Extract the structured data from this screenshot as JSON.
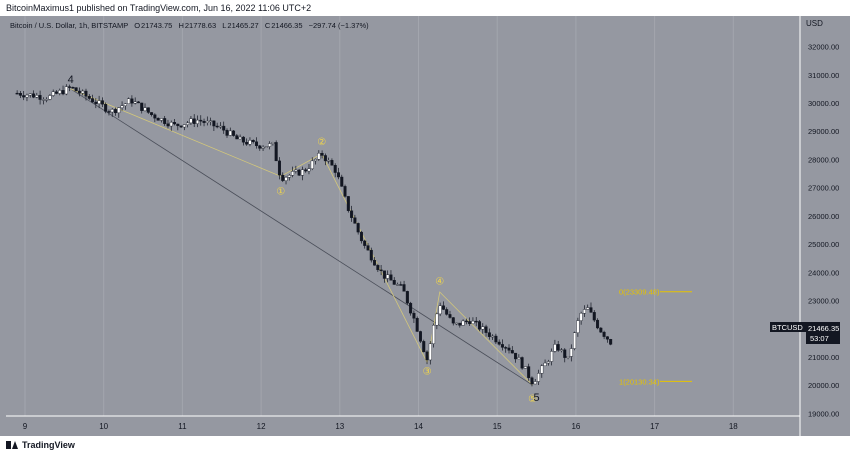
{
  "header": {
    "publish_line": "BitcoinMaximus1 published on TradingView.com, Jun 16, 2022 11:06 UTC+2"
  },
  "symbol_info": {
    "name": "Bitcoin / U.S. Dollar, 1h, BITSTAMP",
    "o_label": "O",
    "o_value": "21743.75",
    "h_label": "H",
    "h_value": "21778.63",
    "l_label": "L",
    "l_value": "21465.27",
    "c_label": "C",
    "c_value": "21466.35",
    "change": "−297.74 (−1.37%)"
  },
  "price_badge": {
    "symbol": "BTCUSD",
    "price": "21466.35",
    "countdown": "53:07"
  },
  "footer": {
    "brand": "TradingView"
  },
  "colors": {
    "background": "#9598a1",
    "wave_label": "#f2d648",
    "fib_line": "#e6c300",
    "candle_up": "#ffffff",
    "candle_down": "#131722",
    "trend_line": "#4a4e59",
    "wave_path": "#d4c87a"
  },
  "chart_data": {
    "type": "candlestick",
    "currency_label": "USD",
    "y_ticks": [
      19000,
      20000,
      21000,
      22000,
      23000,
      24000,
      25000,
      26000,
      27000,
      28000,
      29000,
      30000,
      31000,
      32000
    ],
    "x_ticks": [
      {
        "label": "9",
        "day": 9
      },
      {
        "label": "10",
        "day": 10
      },
      {
        "label": "11",
        "day": 11
      },
      {
        "label": "12",
        "day": 12
      },
      {
        "label": "13",
        "day": 13
      },
      {
        "label": "14",
        "day": 14
      },
      {
        "label": "15",
        "day": 15
      },
      {
        "label": "16",
        "day": 16
      },
      {
        "label": "17",
        "day": 17
      },
      {
        "label": "18",
        "day": 18
      }
    ],
    "wave_labels": [
      {
        "label": "4",
        "day": 9.58,
        "price": 30850,
        "plain": true
      },
      {
        "label": "①",
        "day": 12.25,
        "price": 26900
      },
      {
        "label": "②",
        "day": 12.77,
        "price": 28650
      },
      {
        "label": "③",
        "day": 14.11,
        "price": 20510
      },
      {
        "label": "④",
        "day": 14.27,
        "price": 23700
      },
      {
        "label": "⑤",
        "day": 15.45,
        "price": 19550
      },
      {
        "label": "5",
        "day": 15.5,
        "price": 19580,
        "plain": true
      }
    ],
    "fib_levels": [
      {
        "label": "0(23309.48)",
        "value": 23309.48
      },
      {
        "label": "1(20130.34)",
        "value": 20130.34
      }
    ],
    "trend_line": [
      {
        "day": 9.58,
        "price": 30500
      },
      {
        "day": 15.45,
        "price": 20000
      }
    ],
    "wave_path": [
      {
        "day": 9.58,
        "price": 30500
      },
      {
        "day": 12.25,
        "price": 27400
      },
      {
        "day": 12.77,
        "price": 28200
      },
      {
        "day": 14.11,
        "price": 20800
      },
      {
        "day": 14.27,
        "price": 23300
      },
      {
        "day": 15.45,
        "price": 20000
      }
    ],
    "anchor_points": [
      {
        "day": 8.9,
        "price": 30350
      },
      {
        "day": 9.3,
        "price": 30200
      },
      {
        "day": 9.58,
        "price": 30550
      },
      {
        "day": 9.8,
        "price": 30200
      },
      {
        "day": 10.1,
        "price": 29700
      },
      {
        "day": 10.35,
        "price": 30100
      },
      {
        "day": 10.6,
        "price": 29600
      },
      {
        "day": 10.9,
        "price": 29200
      },
      {
        "day": 11.2,
        "price": 29400
      },
      {
        "day": 11.5,
        "price": 29100
      },
      {
        "day": 11.7,
        "price": 28700
      },
      {
        "day": 11.95,
        "price": 28500
      },
      {
        "day": 12.15,
        "price": 28500
      },
      {
        "day": 12.25,
        "price": 27350
      },
      {
        "day": 12.55,
        "price": 27600
      },
      {
        "day": 12.77,
        "price": 28200
      },
      {
        "day": 12.95,
        "price": 27600
      },
      {
        "day": 13.1,
        "price": 26300
      },
      {
        "day": 13.3,
        "price": 25000
      },
      {
        "day": 13.55,
        "price": 23900
      },
      {
        "day": 13.8,
        "price": 23400
      },
      {
        "day": 13.95,
        "price": 22300
      },
      {
        "day": 14.11,
        "price": 20900
      },
      {
        "day": 14.2,
        "price": 22200
      },
      {
        "day": 14.27,
        "price": 22900
      },
      {
        "day": 14.45,
        "price": 22100
      },
      {
        "day": 14.65,
        "price": 22300
      },
      {
        "day": 14.9,
        "price": 21800
      },
      {
        "day": 15.15,
        "price": 21300
      },
      {
        "day": 15.3,
        "price": 20800
      },
      {
        "day": 15.45,
        "price": 20100
      },
      {
        "day": 15.6,
        "price": 20700
      },
      {
        "day": 15.75,
        "price": 21400
      },
      {
        "day": 15.9,
        "price": 20900
      },
      {
        "day": 16.05,
        "price": 22500
      },
      {
        "day": 16.15,
        "price": 22700
      },
      {
        "day": 16.3,
        "price": 22000
      },
      {
        "day": 16.45,
        "price": 21500
      }
    ]
  }
}
